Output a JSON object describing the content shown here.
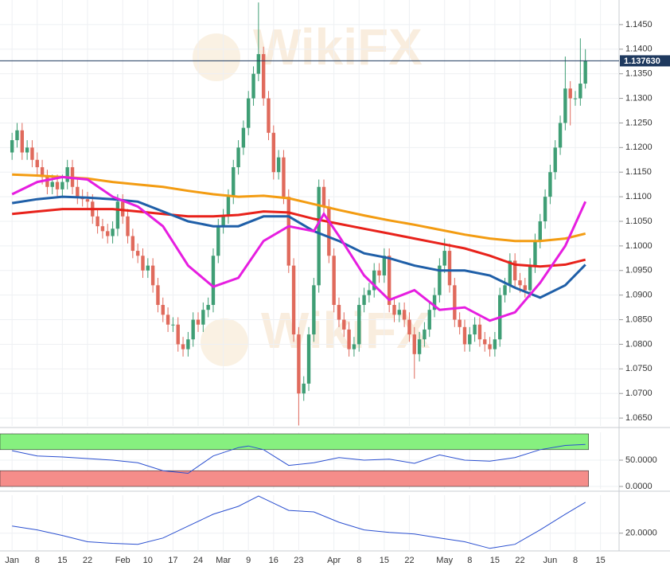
{
  "chart_data": {
    "type": "candlestick",
    "watermark": "WikiFX",
    "xlim": [
      -2.4,
      120.7
    ],
    "xticks": [
      {
        "value": 0,
        "label": "Jan"
      },
      {
        "value": 5,
        "label": "8"
      },
      {
        "value": 10,
        "label": "15"
      },
      {
        "value": 15,
        "label": "22"
      },
      {
        "value": 22,
        "label": "Feb"
      },
      {
        "value": 27,
        "label": "10"
      },
      {
        "value": 32,
        "label": "17"
      },
      {
        "value": 37,
        "label": "24"
      },
      {
        "value": 42,
        "label": "Mar"
      },
      {
        "value": 47,
        "label": "9"
      },
      {
        "value": 52,
        "label": "16"
      },
      {
        "value": 57,
        "label": "23"
      },
      {
        "value": 64,
        "label": "Apr"
      },
      {
        "value": 69,
        "label": "8"
      },
      {
        "value": 74,
        "label": "15"
      },
      {
        "value": 79,
        "label": "22"
      },
      {
        "value": 86,
        "label": "May"
      },
      {
        "value": 91,
        "label": "8"
      },
      {
        "value": 96,
        "label": "15"
      },
      {
        "value": 101,
        "label": "22"
      },
      {
        "value": 107,
        "label": "Jun"
      },
      {
        "value": 112,
        "label": "8"
      },
      {
        "value": 117,
        "label": "15"
      }
    ],
    "ylim": [
      1.0634,
      1.15
    ],
    "yticks": [
      {
        "value": 1.145,
        "label": "1.1450"
      },
      {
        "value": 1.14,
        "label": "1.1400"
      },
      {
        "value": 1.135,
        "label": "1.1350"
      },
      {
        "value": 1.13,
        "label": "1.1300"
      },
      {
        "value": 1.125,
        "label": "1.1250"
      },
      {
        "value": 1.12,
        "label": "1.1200"
      },
      {
        "value": 1.115,
        "label": "1.1150"
      },
      {
        "value": 1.11,
        "label": "1.1100"
      },
      {
        "value": 1.105,
        "label": "1.1050"
      },
      {
        "value": 1.1,
        "label": "1.1000"
      },
      {
        "value": 1.095,
        "label": "1.0950"
      },
      {
        "value": 1.09,
        "label": "1.0900"
      },
      {
        "value": 1.085,
        "label": "1.0850"
      },
      {
        "value": 1.08,
        "label": "1.0800"
      },
      {
        "value": 1.075,
        "label": "1.0750"
      },
      {
        "value": 1.07,
        "label": "1.0700"
      },
      {
        "value": 1.065,
        "label": "1.0650"
      }
    ],
    "grid": true,
    "up_color": "#3f9e75",
    "down_color": "#e06a5c",
    "open": [
      1.119,
      1.1215,
      1.1235,
      1.119,
      1.12,
      1.1175,
      1.116,
      1.114,
      1.112,
      1.113,
      1.1115,
      1.113,
      1.116,
      1.112,
      1.11,
      1.1095,
      1.109,
      1.106,
      1.104,
      1.103,
      1.102,
      1.1035,
      1.109,
      1.106,
      1.102,
      1.099,
      1.098,
      1.095,
      1.096,
      1.092,
      1.088,
      1.086,
      1.084,
      1.084,
      1.08,
      1.079,
      1.081,
      1.085,
      1.084,
      1.087,
      1.088,
      1.098,
      1.104,
      1.106,
      1.11,
      1.116,
      1.12,
      1.124,
      1.13,
      1.135,
      1.139,
      1.13,
      1.123,
      1.115,
      1.118,
      1.11,
      1.096,
      1.082,
      1.07,
      1.072,
      1.082,
      1.092,
      1.112,
      1.108,
      1.098,
      1.088,
      1.085,
      1.083,
      1.079,
      1.08,
      1.088,
      1.09,
      1.091,
      1.095,
      1.094,
      1.098,
      1.088,
      1.086,
      1.087,
      1.085,
      1.082,
      1.078,
      1.081,
      1.083,
      1.087,
      1.09,
      1.096,
      1.099,
      1.092,
      1.085,
      1.0835,
      1.08,
      1.082,
      1.084,
      1.081,
      1.08,
      1.079,
      1.081,
      1.09,
      1.092,
      1.097,
      1.093,
      1.092,
      1.091,
      1.096,
      1.101,
      1.105,
      1.11,
      1.115,
      1.12,
      1.125,
      1.132,
      1.13,
      1.13,
      1.133
    ],
    "high": [
      1.123,
      1.125,
      1.125,
      1.1215,
      1.1215,
      1.119,
      1.1175,
      1.1155,
      1.1145,
      1.1145,
      1.1145,
      1.1175,
      1.1175,
      1.1135,
      1.1115,
      1.111,
      1.1105,
      1.1075,
      1.1055,
      1.1045,
      1.105,
      1.1105,
      1.1105,
      1.1075,
      1.1035,
      1.1005,
      1.0995,
      1.0975,
      1.0975,
      1.0935,
      1.0895,
      1.0875,
      1.0855,
      1.0855,
      1.0815,
      1.0825,
      1.0865,
      1.0865,
      1.0885,
      1.0895,
      1.0995,
      1.1055,
      1.1075,
      1.1115,
      1.1175,
      1.1215,
      1.1255,
      1.1315,
      1.1365,
      1.1495,
      1.1405,
      1.1315,
      1.1245,
      1.1195,
      1.1195,
      1.1115,
      1.0975,
      1.0835,
      1.0735,
      1.0835,
      1.0935,
      1.1135,
      1.1135,
      1.1095,
      1.0995,
      1.0895,
      1.0865,
      1.0845,
      1.0815,
      1.0895,
      1.0915,
      1.0925,
      1.0965,
      1.0965,
      1.0995,
      1.0995,
      1.0895,
      1.0885,
      1.0885,
      1.0865,
      1.0835,
      1.0825,
      1.0845,
      1.0885,
      1.0915,
      1.0975,
      1.1015,
      1.1005,
      1.0935,
      1.0865,
      1.085,
      1.0835,
      1.0855,
      1.0855,
      1.0825,
      1.0815,
      1.0825,
      1.0915,
      1.0935,
      1.0985,
      1.0985,
      1.0945,
      1.0935,
      1.0975,
      1.1025,
      1.1065,
      1.1115,
      1.1165,
      1.1215,
      1.1265,
      1.1385,
      1.1335,
      1.1315,
      1.1422,
      1.14
    ],
    "low": [
      1.1175,
      1.12,
      1.1175,
      1.1175,
      1.116,
      1.1145,
      1.1125,
      1.1105,
      1.1105,
      1.11,
      1.11,
      1.1115,
      1.1105,
      1.1085,
      1.108,
      1.1075,
      1.1045,
      1.1025,
      1.1015,
      1.1005,
      1.1005,
      1.102,
      1.1045,
      1.1005,
      1.0975,
      1.0965,
      1.0935,
      1.0935,
      1.0905,
      1.0865,
      1.0845,
      1.0825,
      1.0825,
      1.0785,
      1.0775,
      1.0775,
      1.0795,
      1.0825,
      1.0825,
      1.0855,
      1.0865,
      1.0965,
      1.1025,
      1.1045,
      1.1085,
      1.1145,
      1.1185,
      1.1225,
      1.1285,
      1.1335,
      1.1285,
      1.1215,
      1.1135,
      1.1135,
      1.1085,
      1.0945,
      1.0805,
      1.0635,
      1.0685,
      1.0705,
      1.0805,
      1.0905,
      1.1065,
      1.0965,
      1.0865,
      1.0835,
      1.0815,
      1.0775,
      1.0775,
      1.0785,
      1.0865,
      1.0885,
      1.0895,
      1.0925,
      1.0925,
      1.0865,
      1.0845,
      1.0845,
      1.0835,
      1.0805,
      1.073,
      1.0765,
      1.0795,
      1.0815,
      1.0855,
      1.0885,
      1.0945,
      1.0905,
      1.0835,
      1.082,
      1.0785,
      1.0785,
      1.0805,
      1.0795,
      1.0785,
      1.0775,
      1.0775,
      1.0795,
      1.0885,
      1.0905,
      1.0915,
      1.0905,
      1.0895,
      1.0895,
      1.0945,
      1.0995,
      1.1035,
      1.1085,
      1.1135,
      1.1185,
      1.1235,
      1.1245,
      1.1285,
      1.1285,
      1.132
    ],
    "close": [
      1.1215,
      1.1235,
      1.119,
      1.12,
      1.1175,
      1.116,
      1.114,
      1.112,
      1.113,
      1.1115,
      1.113,
      1.116,
      1.112,
      1.11,
      1.1095,
      1.109,
      1.106,
      1.104,
      1.103,
      1.102,
      1.1035,
      1.109,
      1.106,
      1.102,
      1.099,
      1.098,
      1.095,
      1.096,
      1.092,
      1.088,
      1.086,
      1.084,
      1.084,
      1.08,
      1.079,
      1.081,
      1.085,
      1.084,
      1.087,
      1.088,
      1.098,
      1.104,
      1.106,
      1.11,
      1.116,
      1.12,
      1.124,
      1.13,
      1.135,
      1.139,
      1.13,
      1.123,
      1.115,
      1.118,
      1.11,
      1.096,
      1.082,
      1.07,
      1.072,
      1.082,
      1.092,
      1.112,
      1.108,
      1.098,
      1.088,
      1.085,
      1.083,
      1.079,
      1.08,
      1.088,
      1.09,
      1.091,
      1.095,
      1.094,
      1.098,
      1.088,
      1.086,
      1.087,
      1.085,
      1.082,
      1.078,
      1.081,
      1.083,
      1.087,
      1.09,
      1.096,
      1.099,
      1.092,
      1.085,
      1.0835,
      1.08,
      1.082,
      1.084,
      1.081,
      1.08,
      1.079,
      1.081,
      1.09,
      1.092,
      1.097,
      1.093,
      1.092,
      1.091,
      1.096,
      1.101,
      1.105,
      1.11,
      1.115,
      1.12,
      1.125,
      1.132,
      1.13,
      1.13,
      1.133,
      1.1376
    ],
    "overlays": [
      {
        "color": "#f39c12",
        "x": [
          0,
          5,
          10,
          15,
          20,
          25,
          30,
          35,
          40,
          45,
          50,
          55,
          60,
          65,
          70,
          75,
          80,
          85,
          90,
          95,
          100,
          105,
          110,
          114
        ],
        "values": [
          1.1145,
          1.1143,
          1.114,
          1.1137,
          1.113,
          1.1125,
          1.112,
          1.1112,
          1.1105,
          1.11,
          1.1102,
          1.1097,
          1.1085,
          1.1073,
          1.1062,
          1.1052,
          1.1043,
          1.1033,
          1.1023,
          1.1015,
          1.101,
          1.101,
          1.1015,
          1.1025
        ]
      },
      {
        "color": "#e8221b",
        "x": [
          0,
          5,
          10,
          15,
          20,
          25,
          30,
          35,
          40,
          45,
          50,
          55,
          60,
          65,
          70,
          75,
          80,
          85,
          90,
          95,
          100,
          105,
          110,
          114
        ],
        "values": [
          1.1065,
          1.107,
          1.1075,
          1.1075,
          1.1075,
          1.107,
          1.1065,
          1.106,
          1.106,
          1.1063,
          1.107,
          1.1068,
          1.1055,
          1.1045,
          1.1035,
          1.1025,
          1.1015,
          1.1005,
          1.0995,
          1.098,
          1.0962,
          1.0958,
          1.0962,
          1.0972
        ]
      },
      {
        "color": "#1f5fa8",
        "x": [
          0,
          5,
          10,
          15,
          20,
          25,
          30,
          35,
          40,
          45,
          50,
          55,
          60,
          65,
          70,
          75,
          80,
          85,
          90,
          95,
          100,
          105,
          110,
          114
        ],
        "values": [
          1.1087,
          1.1095,
          1.11,
          1.1098,
          1.1095,
          1.109,
          1.107,
          1.105,
          1.104,
          1.104,
          1.106,
          1.106,
          1.103,
          1.101,
          1.0985,
          1.0975,
          1.096,
          1.095,
          1.095,
          1.094,
          1.0915,
          1.0895,
          1.092,
          1.0962
        ]
      },
      {
        "color": "#e61ee0",
        "x": [
          0,
          5,
          10,
          15,
          20,
          25,
          30,
          35,
          40,
          45,
          50,
          55,
          60,
          62,
          65,
          70,
          75,
          80,
          85,
          90,
          95,
          100,
          105,
          110,
          114
        ],
        "values": [
          1.1105,
          1.113,
          1.114,
          1.1135,
          1.11,
          1.108,
          1.104,
          1.096,
          1.0917,
          1.0935,
          1.101,
          1.104,
          1.103,
          1.1065,
          1.102,
          1.094,
          1.089,
          1.091,
          1.087,
          1.0875,
          1.0848,
          1.0865,
          1.0925,
          1.1,
          1.109
        ]
      }
    ],
    "last_price": {
      "value": 1.13763,
      "label": "1.137630"
    },
    "indicators": [
      {
        "type": "line",
        "ylim": [
          -4.5,
          103
        ],
        "yticks": [
          {
            "value": 50,
            "label": "50.0000"
          },
          {
            "value": 0,
            "label": "0.0000"
          }
        ],
        "color": "#2a4fd0",
        "bands": [
          {
            "range": [
              70,
              100
            ],
            "color": "#86f07f"
          },
          {
            "range": [
              0,
              30
            ],
            "color": "#f58d8a"
          }
        ],
        "x": [
          0,
          5,
          10,
          15,
          20,
          25,
          30,
          35,
          40,
          45,
          47,
          50,
          55,
          60,
          65,
          70,
          75,
          80,
          85,
          90,
          95,
          100,
          105,
          110,
          114
        ],
        "values": [
          68,
          58,
          56,
          53,
          50,
          45,
          30,
          25,
          58,
          74,
          77,
          70,
          40,
          45,
          55,
          50,
          52,
          44,
          60,
          50,
          48,
          55,
          70,
          78,
          80
        ]
      },
      {
        "type": "line",
        "ylim": [
          13,
          35
        ],
        "yticks": [
          {
            "value": 20,
            "label": "20.0000"
          }
        ],
        "color": "#2a4fd0",
        "x": [
          0,
          5,
          10,
          15,
          20,
          25,
          30,
          35,
          40,
          45,
          49,
          50,
          55,
          60,
          65,
          70,
          75,
          80,
          85,
          90,
          95,
          100,
          105,
          110,
          114
        ],
        "values": [
          22.8,
          21.3,
          19.1,
          16.6,
          16,
          15.6,
          18.1,
          22.8,
          27.5,
          30.6,
          34.7,
          33.7,
          29,
          28.4,
          24.3,
          21.3,
          20.3,
          19.7,
          18.1,
          16.6,
          14,
          15.6,
          21.3,
          27.5,
          32.2
        ]
      }
    ]
  }
}
